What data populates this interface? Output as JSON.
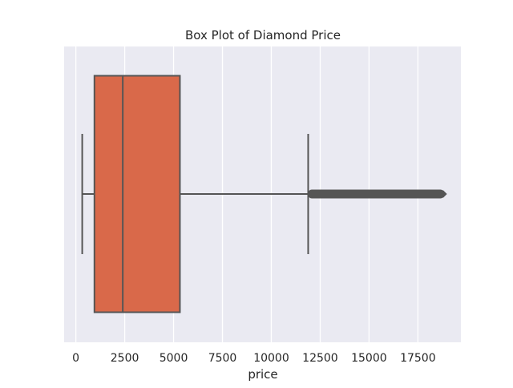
{
  "chart_data": {
    "type": "box",
    "title": "Box Plot of Diamond Price",
    "xlabel": "price",
    "ylabel": "",
    "xlim": [
      -600,
      19700
    ],
    "xticks": [
      0,
      2500,
      5000,
      7500,
      10000,
      12500,
      15000,
      17500
    ],
    "xtick_labels": [
      "0",
      "2500",
      "5000",
      "7500",
      "10000",
      "12500",
      "15000",
      "17500"
    ],
    "grid": true,
    "box": {
      "whisker_low": 326,
      "q1": 950,
      "median": 2401,
      "q3": 5324,
      "whisker_high": 11886,
      "outliers_min": 11900,
      "outliers_max": 18823
    },
    "colors": {
      "background": "#eaeaf2",
      "grid": "#ffffff",
      "box_fill": "#d9694a",
      "line": "#555555"
    }
  }
}
